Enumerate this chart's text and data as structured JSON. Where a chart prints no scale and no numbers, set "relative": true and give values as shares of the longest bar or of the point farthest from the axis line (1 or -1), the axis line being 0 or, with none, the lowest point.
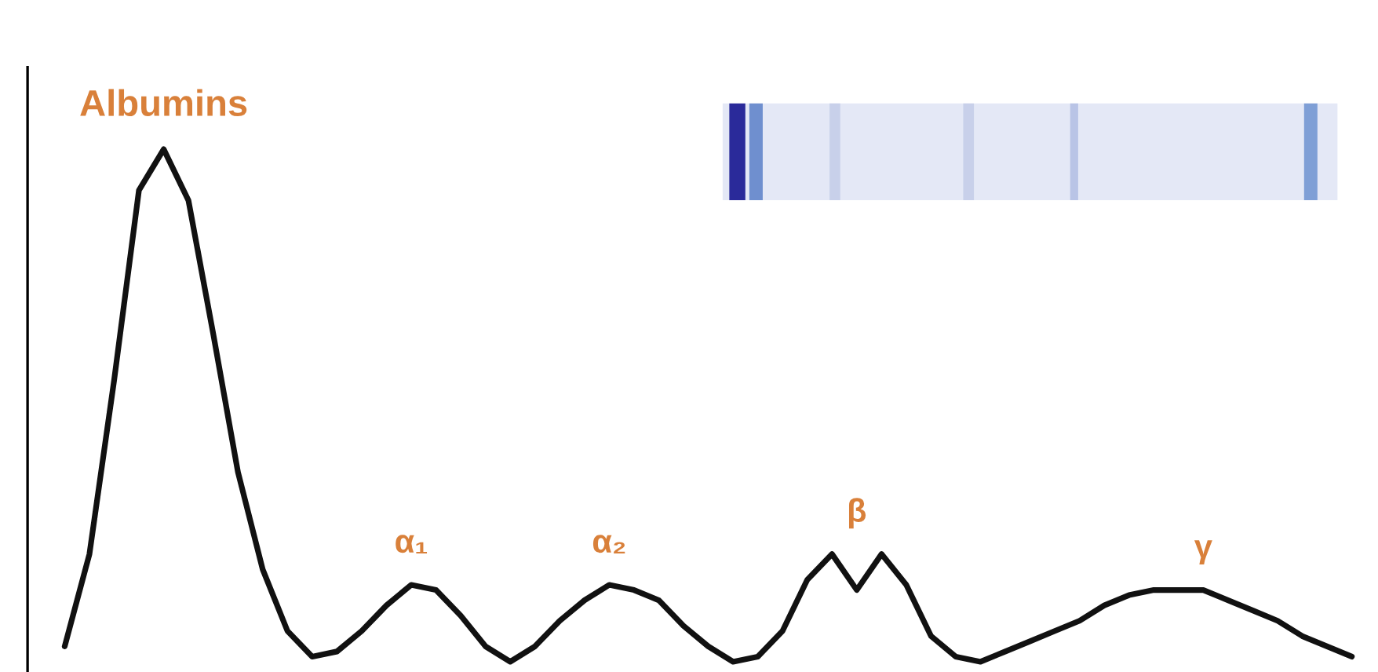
{
  "chart_data": {
    "type": "line",
    "relative": true,
    "categories": [
      null,
      null,
      null,
      null,
      null,
      null,
      null,
      null,
      null,
      null,
      null,
      null,
      null,
      null,
      null,
      null,
      null,
      null,
      null,
      null,
      null,
      null,
      null,
      null,
      null,
      null,
      null,
      null,
      null,
      null,
      null,
      null,
      null,
      null,
      null,
      null,
      null,
      null,
      null,
      null,
      null,
      null,
      null,
      null,
      null,
      null,
      null,
      null,
      null,
      null,
      null,
      null,
      null
    ],
    "series": [
      {
        "color": "#111111",
        "values": [
          0.03,
          0.21,
          0.55,
          0.92,
          1,
          0.9,
          0.64,
          0.37,
          0.18,
          0.06,
          0.01,
          0.02,
          0.06,
          0.11,
          0.15,
          0.14,
          0.09,
          0.03,
          0,
          0.03,
          0.08,
          0.12,
          0.15,
          0.14,
          0.12,
          0.07,
          0.03,
          0,
          0.01,
          0.06,
          0.16,
          0.21,
          0.14,
          0.21,
          0.15,
          0.05,
          0.01,
          0,
          0.02,
          0.04,
          0.06,
          0.08,
          0.11,
          0.13,
          0.14,
          0.14,
          0.14,
          0.12,
          0.1,
          0.08,
          0.05,
          0.03,
          0.01
        ]
      }
    ],
    "annotations": [
      "Albumins",
      "α₁",
      "α₂",
      "β",
      "γ"
    ],
    "legend": false,
    "marker": "none",
    "line_style": "solid"
  }
}
